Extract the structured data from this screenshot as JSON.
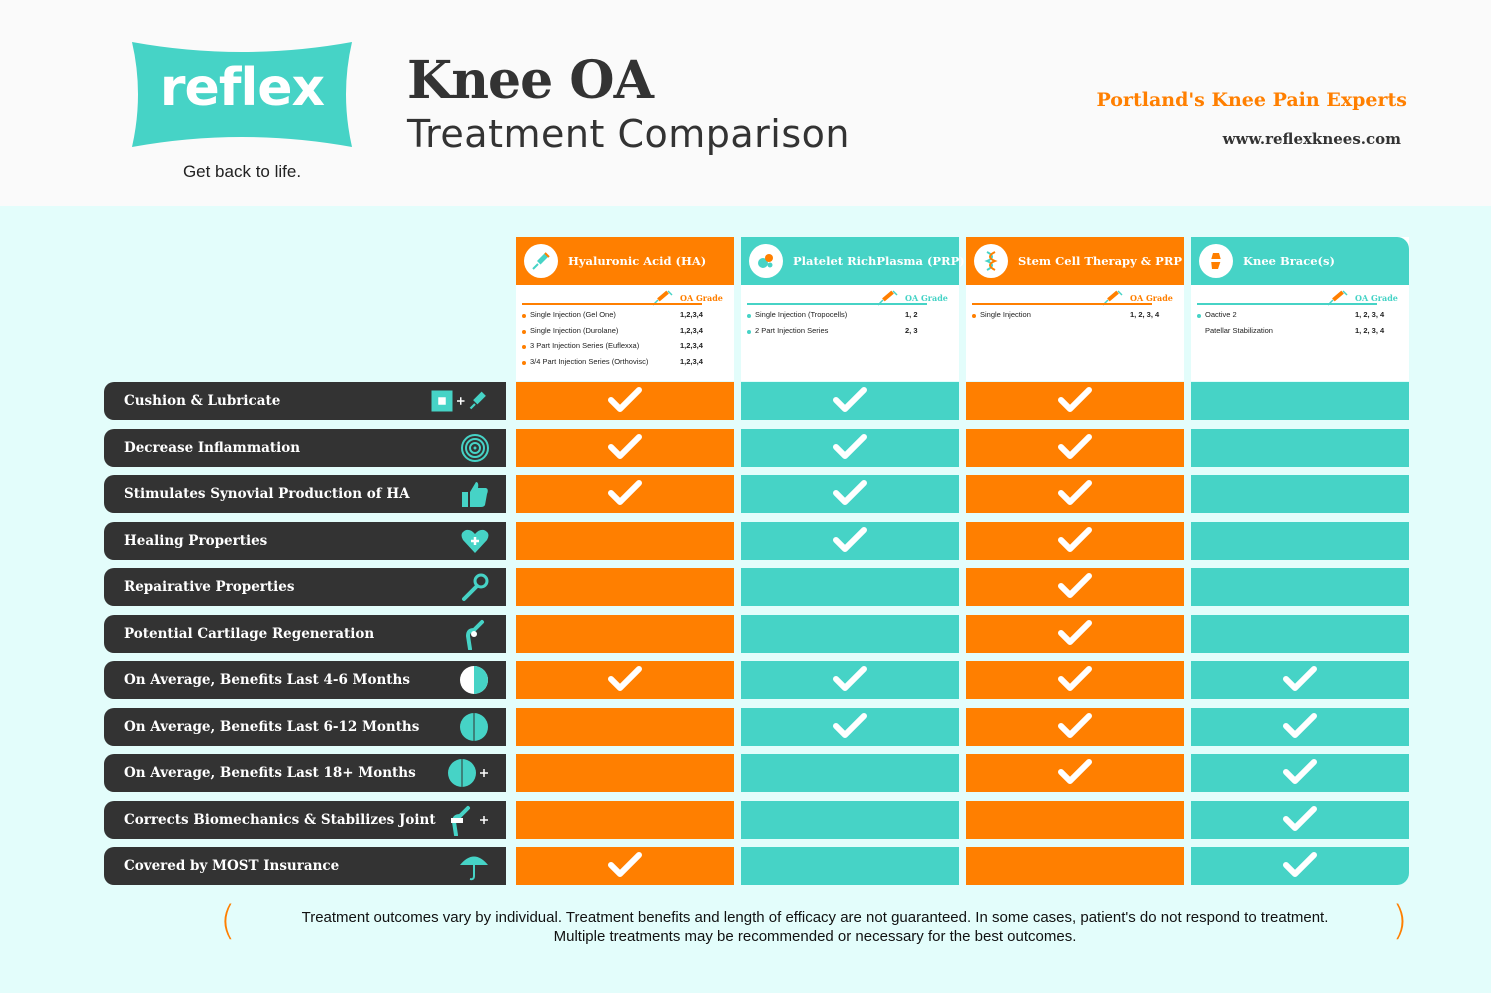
{
  "header": {
    "logo_text": "reflex",
    "tagline": "Get back to life.",
    "title": "Knee OA",
    "subtitle": "Treatment Comparison",
    "experts": "Portland's Knee Pain Experts",
    "website": "www.reflexknees.com"
  },
  "oa_grade_label": "OA Grade",
  "treatments": [
    {
      "title": "Hyaluronic Acid (HA)",
      "color": "orange",
      "options": [
        {
          "name": "Single Injection (Gel One)",
          "grade": "1,2,3,4"
        },
        {
          "name": "Single Injection (Durolane)",
          "grade": "1,2,3,4"
        },
        {
          "name": "3 Part Injection Series (Euflexxa)",
          "grade": "1,2,3,4"
        },
        {
          "name": "3/4 Part Injection Series (Orthovisc)",
          "grade": "1,2,3,4"
        }
      ]
    },
    {
      "title": "Platelet RichPlasma (PRP)",
      "color": "teal",
      "options": [
        {
          "name": "Single Injection (Tropocells)",
          "grade": "1, 2"
        },
        {
          "name": "2 Part Injection Series",
          "grade": "2, 3"
        }
      ]
    },
    {
      "title": "Stem Cell Therapy & PRP",
      "color": "orange",
      "options": [
        {
          "name": "Single Injection",
          "grade": "1, 2, 3, 4"
        }
      ]
    },
    {
      "title": "Knee Brace(s)",
      "color": "teal",
      "options": [
        {
          "name": "Oactive 2",
          "grade": "1, 2, 3, 4"
        },
        {
          "name": "Patellar Stabilization",
          "grade": "1, 2, 3, 4"
        }
      ]
    }
  ],
  "rows": [
    {
      "label": "Cushion & Lubricate",
      "icon": "cushion-lubricate-icon",
      "checks": [
        true,
        true,
        true,
        false
      ]
    },
    {
      "label": "Decrease Inflammation",
      "icon": "inflammation-icon",
      "checks": [
        true,
        true,
        true,
        false
      ]
    },
    {
      "label": "Stimulates Synovial Production of HA",
      "icon": "thumbs-up-icon",
      "checks": [
        true,
        true,
        true,
        false
      ]
    },
    {
      "label": "Healing Properties",
      "icon": "heart-plus-icon",
      "checks": [
        false,
        true,
        true,
        false
      ]
    },
    {
      "label": "Repairative Properties",
      "icon": "wrench-icon",
      "checks": [
        false,
        false,
        true,
        false
      ]
    },
    {
      "label": "Potential Cartilage Regeneration",
      "icon": "knee-icon",
      "checks": [
        false,
        false,
        true,
        false
      ]
    },
    {
      "label": "On Average, Benefits Last 4-6 Months",
      "icon": "half-circle-icon",
      "checks": [
        true,
        true,
        true,
        true
      ]
    },
    {
      "label": "On Average, Benefits Last 6-12 Months",
      "icon": "full-circle-icon",
      "checks": [
        false,
        true,
        true,
        true
      ]
    },
    {
      "label": "On Average, Benefits Last 18+ Months",
      "icon": "full-circle-plus-icon",
      "checks": [
        false,
        false,
        true,
        true
      ]
    },
    {
      "label": "Corrects Biomechanics & Stabilizes Joint",
      "icon": "knee-plus-icon",
      "checks": [
        false,
        false,
        false,
        true
      ]
    },
    {
      "label": "Covered by MOST Insurance",
      "icon": "umbrella-icon",
      "checks": [
        true,
        false,
        false,
        true
      ]
    }
  ],
  "disclaimer": {
    "line1": "Treatment outcomes vary by individual. Treatment benefits and length of efficacy are not guaranteed. In some cases, patient's do not respond to treatment.",
    "line2": "Multiple treatments may be recommended or necessary for the best outcomes.",
    "open_paren": "(",
    "close_paren": ")"
  },
  "colors": {
    "orange": "#ff7f00",
    "teal": "#46d3c6",
    "dark": "#333333",
    "background": "#e3fdfb"
  }
}
